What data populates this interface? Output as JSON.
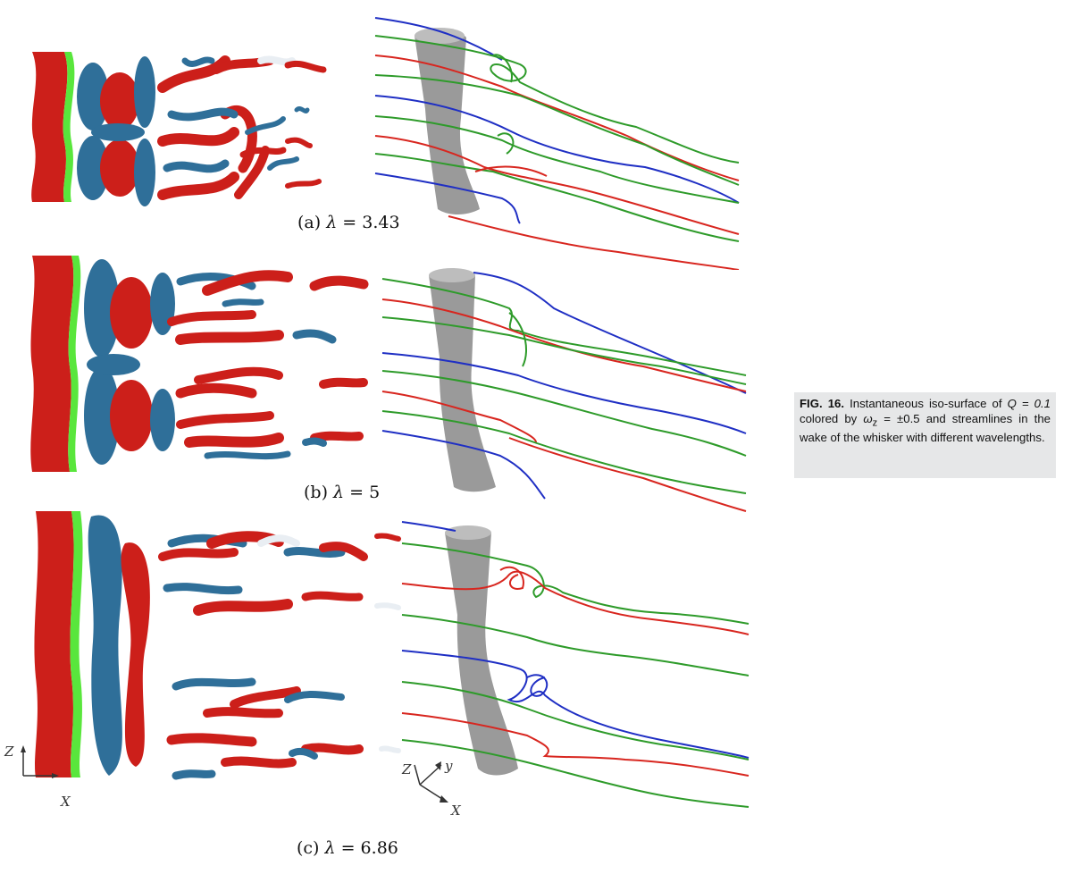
{
  "figure": {
    "caption": {
      "label": "FIG.  16.",
      "text_1": " Instantaneous  iso-surface  of ",
      "math_1": "Q = 0.1",
      "text_2": "  colored  by  ",
      "math_2": "ω",
      "math_2_sub": "z",
      "math_3": " = ±0.5",
      "text_3": "  and streamlines in the wake of the whisker with different wavelengths."
    },
    "panels": [
      {
        "id": "a",
        "prefix": "(a) ",
        "symbol": "λ",
        "value": " = 3.43"
      },
      {
        "id": "b",
        "prefix": "(b) ",
        "symbol": "λ",
        "value": " = 5"
      },
      {
        "id": "c",
        "prefix": "(c) ",
        "symbol": "λ",
        "value": " = 6.86"
      }
    ],
    "axes_left": {
      "z": "Z",
      "x": "X"
    },
    "axes_right": {
      "z": "Z",
      "y": "y",
      "x": "X"
    },
    "colors": {
      "positive_vorticity": "#cc1f1a",
      "negative_vorticity": "#2f6f99",
      "whisker_edge": "#59e63c",
      "whisker_3d": "#8f8f8f",
      "streamline_green": "#2e9b2a",
      "streamline_red": "#d8261f",
      "streamline_blue": "#1f2fc4"
    }
  }
}
